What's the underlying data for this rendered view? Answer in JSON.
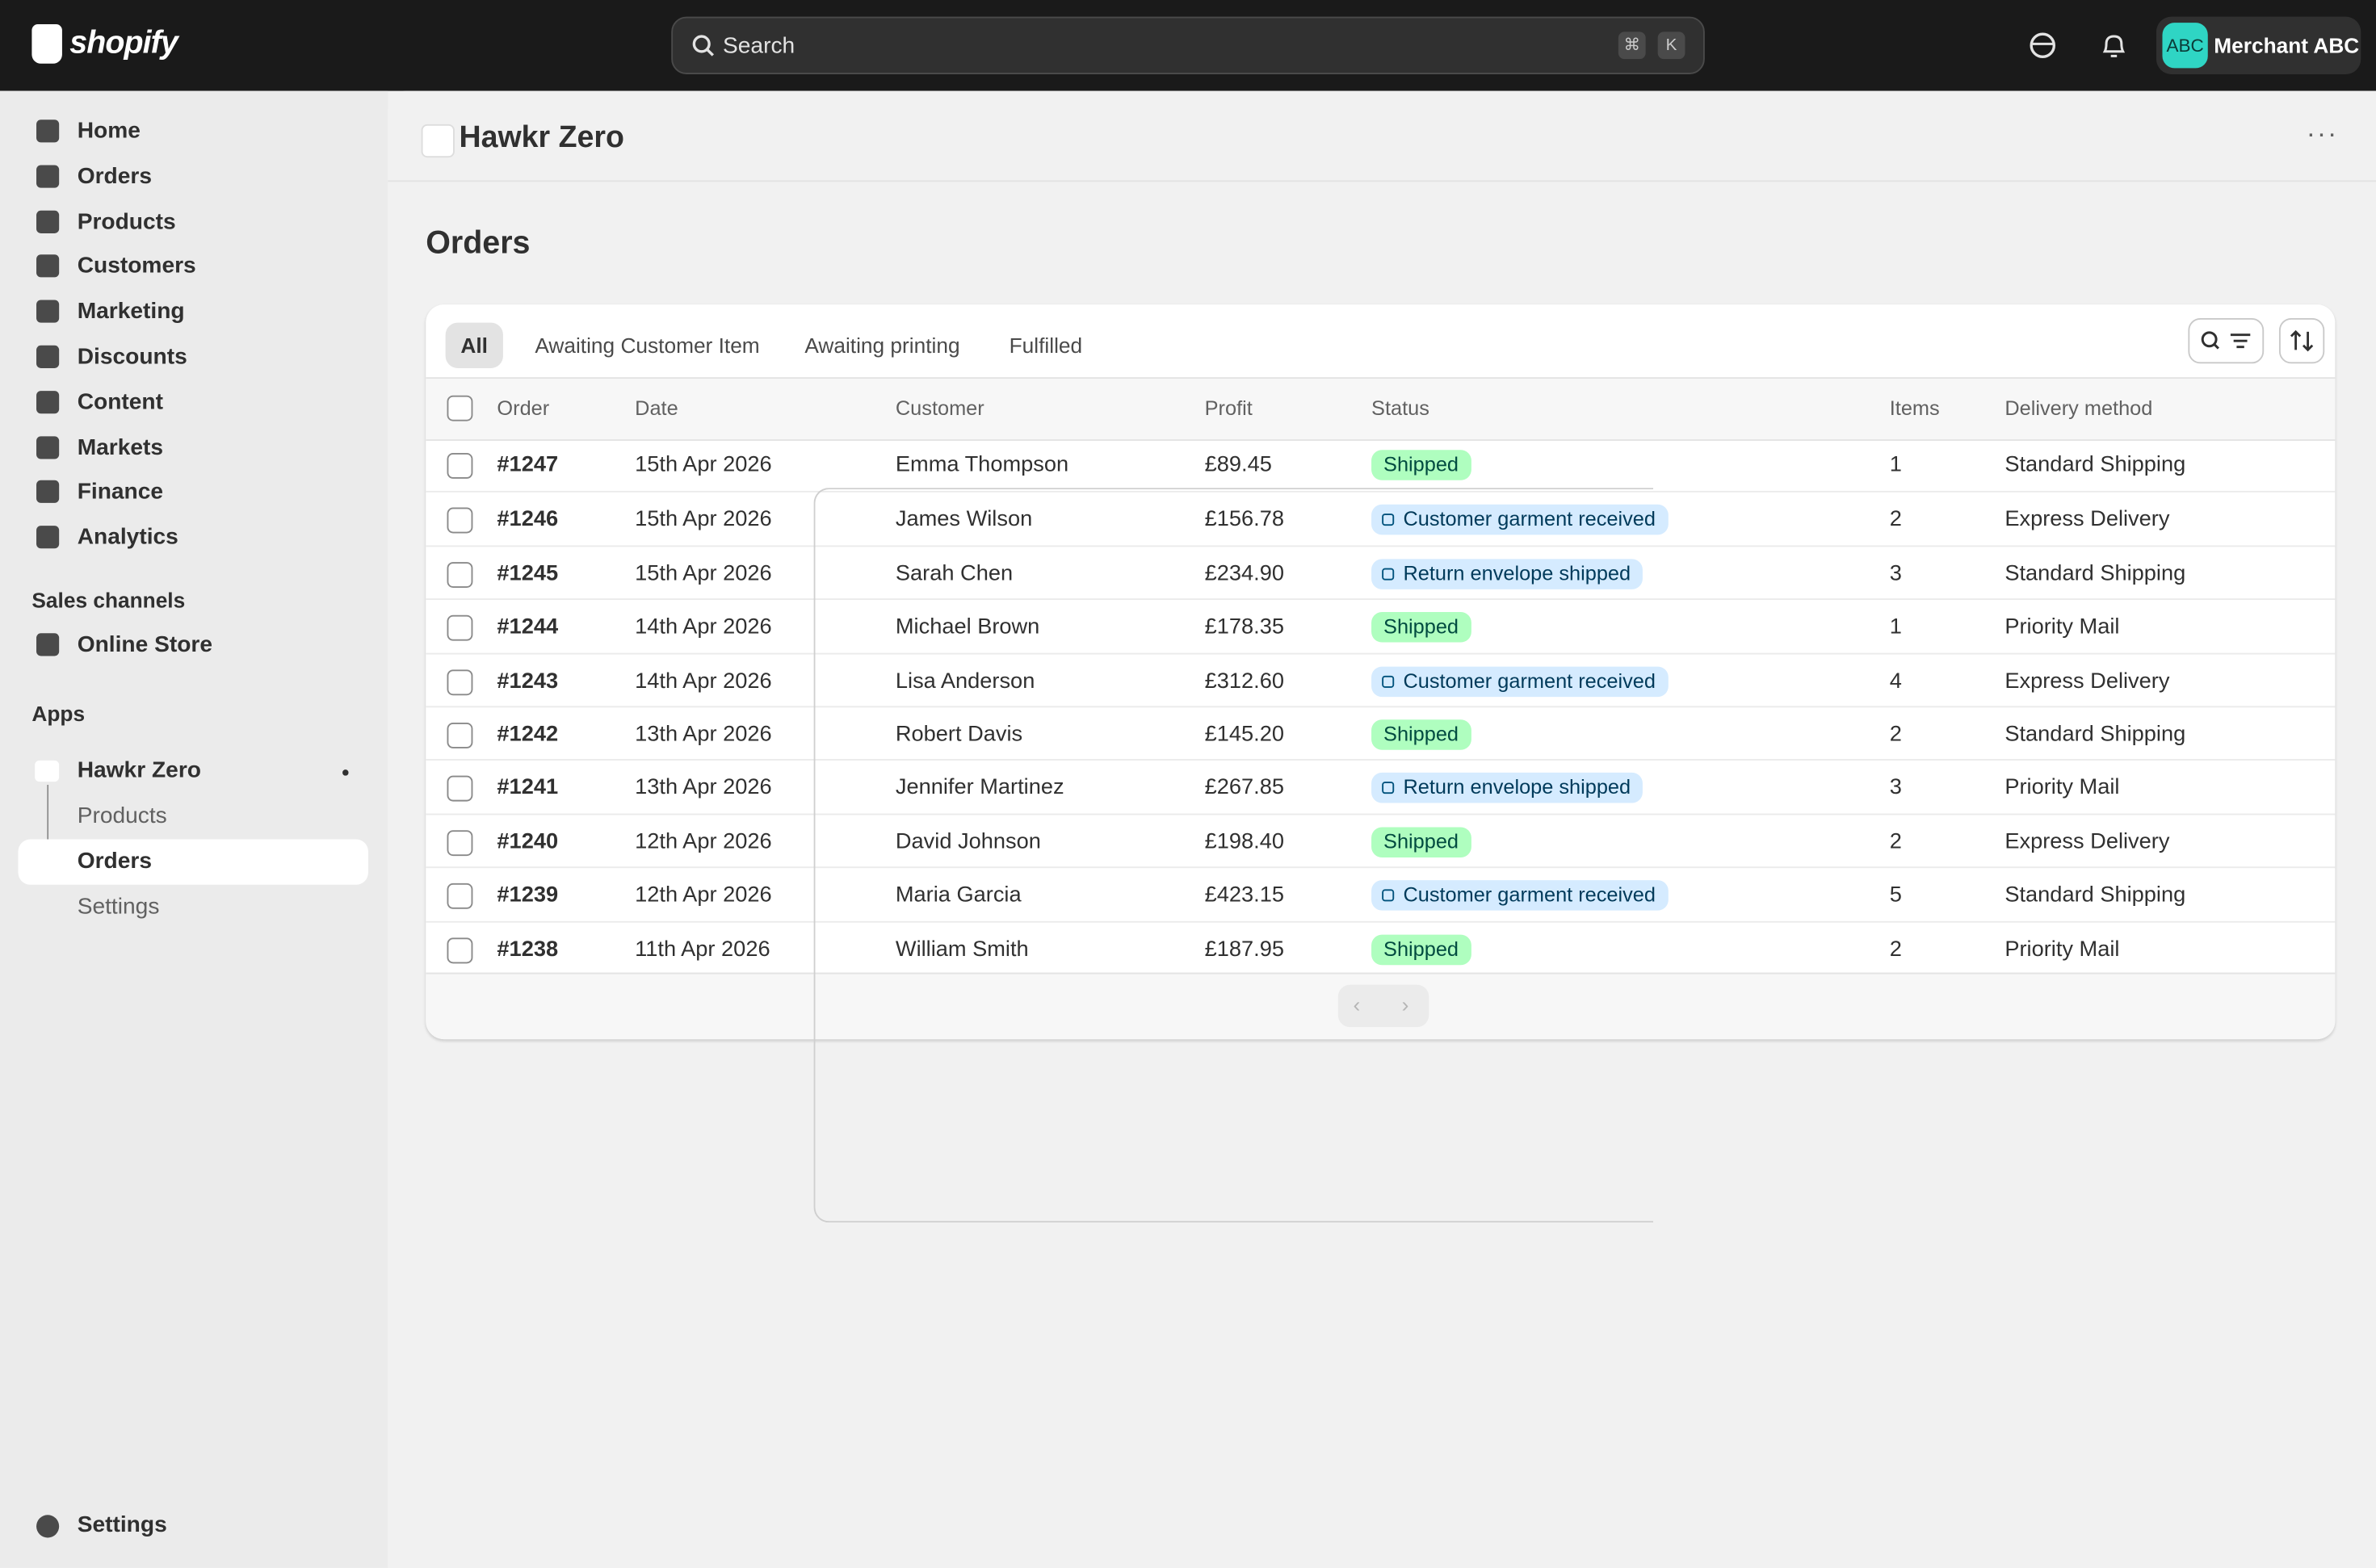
{
  "topbar": {
    "brand": "shopify",
    "search": "Search",
    "shortcut": [
      "⌘",
      "K"
    ],
    "avatar": "ABC",
    "merchant": "Merchant ABC"
  },
  "sidebar": {
    "main": [
      "Home",
      "Orders",
      "Products",
      "Customers",
      "Marketing",
      "Discounts",
      "Content",
      "Markets",
      "Finance",
      "Analytics"
    ],
    "sales_channels": "Sales channels",
    "online_store": "Online Store",
    "apps": "Apps",
    "app": {
      "name": "Hawkr Zero",
      "items": [
        "Products",
        "Orders",
        "Settings"
      ]
    },
    "settings": "Settings"
  },
  "header": {
    "app_title": "Hawkr Zero"
  },
  "page_title": "Orders",
  "tabs": [
    "All",
    "Awaiting Customer Item",
    "Awaiting printing",
    "Fulfilled"
  ],
  "table": {
    "columns": [
      "Order",
      "Date",
      "Customer",
      "Profit",
      "Status",
      "Items",
      "Delivery method"
    ],
    "rows": [
      {
        "order": "#1247",
        "date": "15th Apr 2026",
        "customer": "Emma Thompson",
        "profit": "£89.45",
        "status": {
          "label": "Shipped",
          "tone": "success"
        },
        "items": "1",
        "delivery": "Standard Shipping"
      },
      {
        "order": "#1246",
        "date": "15th Apr 2026",
        "customer": "James Wilson",
        "profit": "£156.78",
        "status": {
          "label": "Customer garment received",
          "tone": "info"
        },
        "items": "2",
        "delivery": "Express Delivery"
      },
      {
        "order": "#1245",
        "date": "15th Apr 2026",
        "customer": "Sarah Chen",
        "profit": "£234.90",
        "status": {
          "label": "Return envelope shipped",
          "tone": "info"
        },
        "items": "3",
        "delivery": "Standard Shipping"
      },
      {
        "order": "#1244",
        "date": "14th Apr 2026",
        "customer": "Michael Brown",
        "profit": "£178.35",
        "status": {
          "label": "Shipped",
          "tone": "success"
        },
        "items": "1",
        "delivery": "Priority Mail"
      },
      {
        "order": "#1243",
        "date": "14th Apr 2026",
        "customer": "Lisa Anderson",
        "profit": "£312.60",
        "status": {
          "label": "Customer garment received",
          "tone": "info"
        },
        "items": "4",
        "delivery": "Express Delivery"
      },
      {
        "order": "#1242",
        "date": "13th Apr 2026",
        "customer": "Robert Davis",
        "profit": "£145.20",
        "status": {
          "label": "Shipped",
          "tone": "success"
        },
        "items": "2",
        "delivery": "Standard Shipping"
      },
      {
        "order": "#1241",
        "date": "13th Apr 2026",
        "customer": "Jennifer Martinez",
        "profit": "£267.85",
        "status": {
          "label": "Return envelope shipped",
          "tone": "info"
        },
        "items": "3",
        "delivery": "Priority Mail"
      },
      {
        "order": "#1240",
        "date": "12th Apr 2026",
        "customer": "David Johnson",
        "profit": "£198.40",
        "status": {
          "label": "Shipped",
          "tone": "success"
        },
        "items": "2",
        "delivery": "Express Delivery"
      },
      {
        "order": "#1239",
        "date": "12th Apr 2026",
        "customer": "Maria Garcia",
        "profit": "£423.15",
        "status": {
          "label": "Customer garment received",
          "tone": "info"
        },
        "items": "5",
        "delivery": "Standard Shipping"
      },
      {
        "order": "#1238",
        "date": "11th Apr 2026",
        "customer": "William Smith",
        "profit": "£187.95",
        "status": {
          "label": "Shipped",
          "tone": "success"
        },
        "items": "2",
        "delivery": "Priority Mail"
      }
    ]
  }
}
